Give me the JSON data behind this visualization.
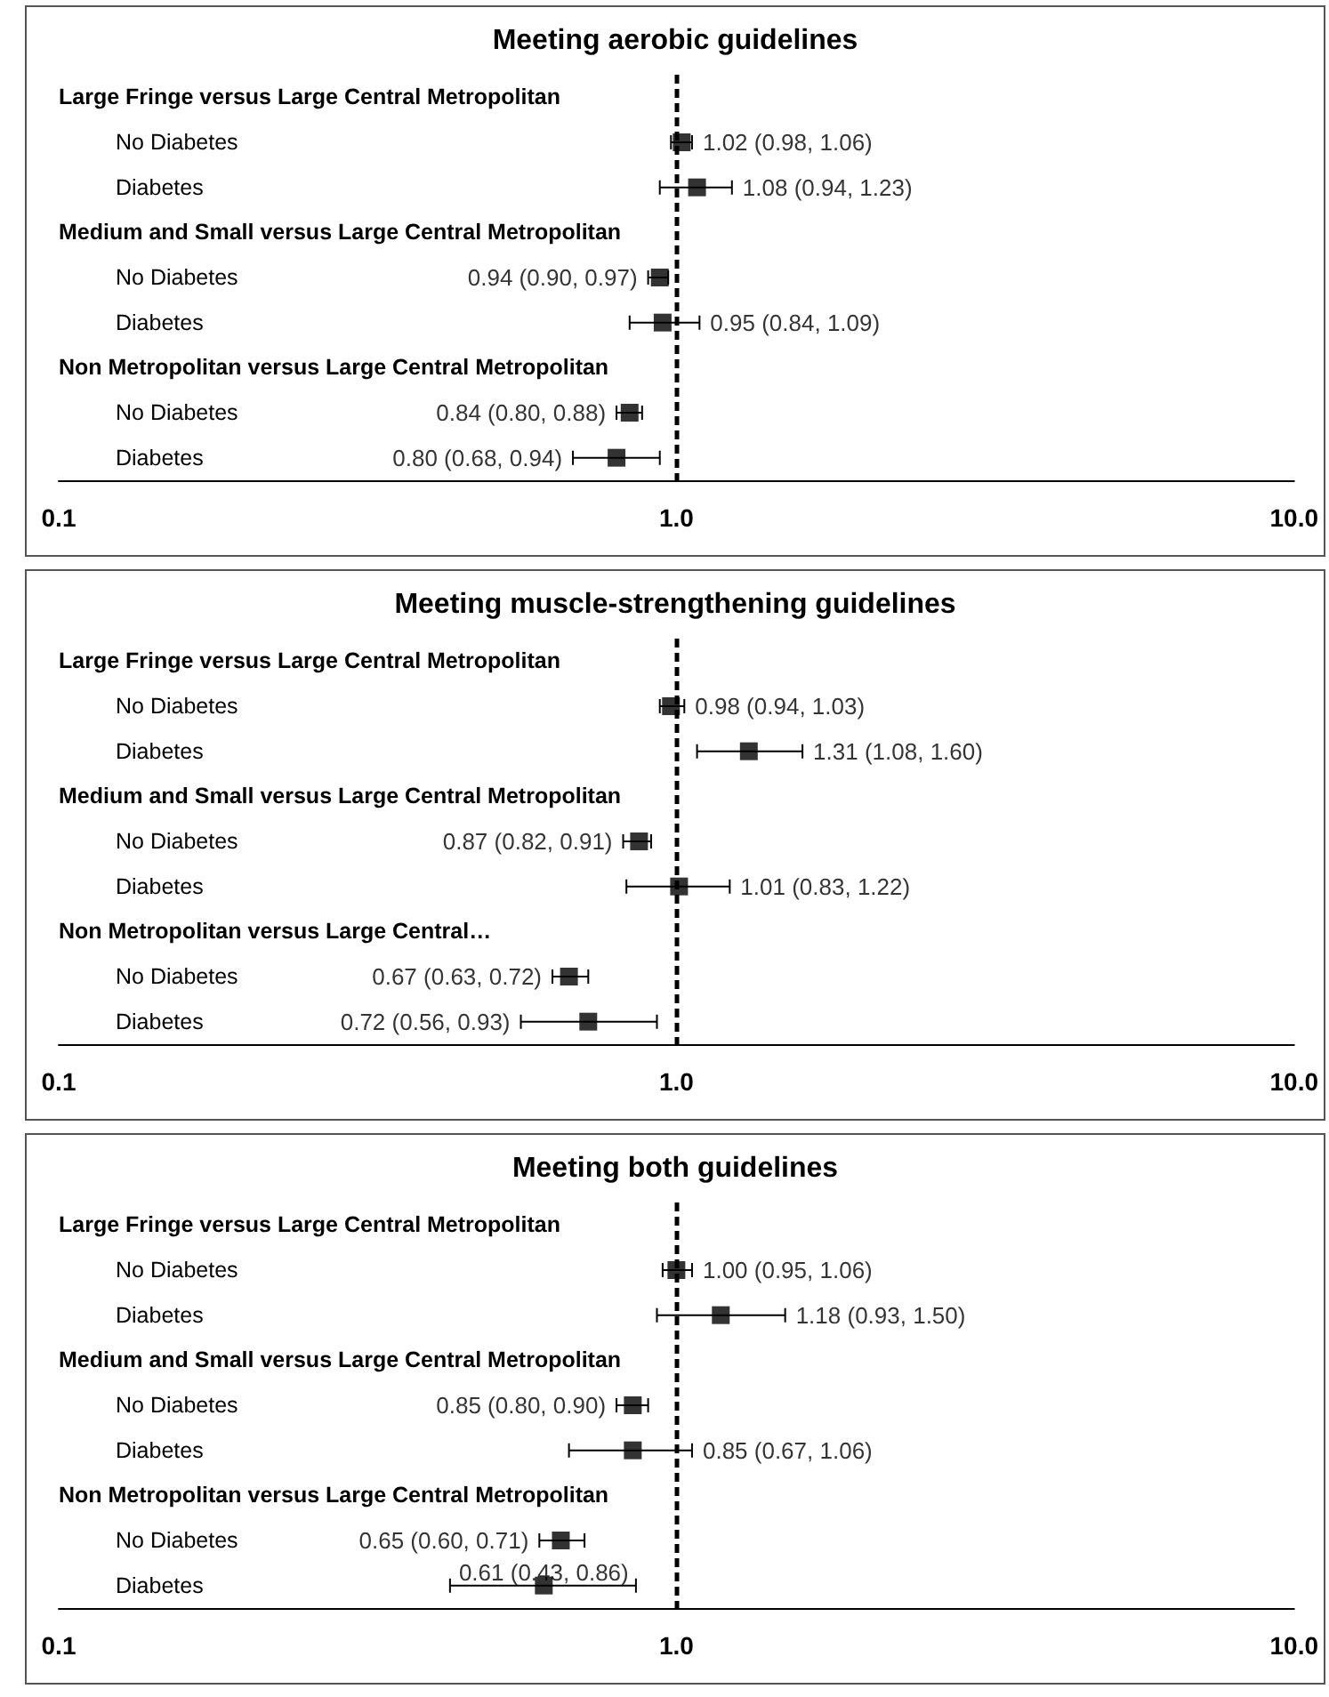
{
  "chart_data": [
    {
      "type": "scatter",
      "title": "Meeting aerobic guidelines",
      "orientation": "horizontal",
      "log": "x",
      "marker": "square",
      "color": "#000000",
      "categories": [
        "Large Fringe versus Large Central Metropolitan",
        "No Diabetes",
        "Diabetes",
        "Medium and Small versus Large Central Metropolitan",
        "No Diabetes",
        "Diabetes",
        "Non Metropolitan versus Large Central Metropolitan",
        "No Diabetes",
        "Diabetes"
      ],
      "values": [
        null,
        1.02,
        1.08,
        null,
        0.94,
        0.95,
        null,
        0.84,
        0.8
      ],
      "errors": [
        null,
        [
          0.98,
          1.06
        ],
        [
          0.94,
          1.23
        ],
        null,
        [
          0.9,
          0.97
        ],
        [
          0.84,
          1.09
        ],
        null,
        [
          0.8,
          0.88
        ],
        [
          0.68,
          0.94
        ]
      ],
      "value_labels": [
        null,
        "1.02 (0.98, 1.06)",
        "1.08 (0.94, 1.23)",
        null,
        "0.94 (0.90, 0.97)",
        "0.95 (0.84, 1.09)",
        null,
        "0.84 (0.80, 0.88)",
        "0.80 (0.68, 0.94)"
      ],
      "xlim": [
        0.1,
        10
      ],
      "xticks": [
        {
          "value": 0.1,
          "label": "0.1"
        },
        {
          "value": 1,
          "label": "1.0"
        },
        {
          "value": 10,
          "label": "10.0"
        }
      ],
      "ref_lines": [
        {
          "axis": "x",
          "value": 1,
          "color": "#000000",
          "line_style": "dashed"
        }
      ]
    },
    {
      "type": "scatter",
      "title": "Meeting muscle-strengthening guidelines",
      "orientation": "horizontal",
      "log": "x",
      "marker": "square",
      "color": "#000000",
      "categories": [
        "Large Fringe versus Large Central Metropolitan",
        "No Diabetes",
        "Diabetes",
        "Medium and Small versus Large Central Metropolitan",
        "No Diabetes",
        "Diabetes",
        "Non Metropolitan versus Large Central…",
        "No Diabetes",
        "Diabetes"
      ],
      "values": [
        null,
        0.98,
        1.31,
        null,
        0.87,
        1.01,
        null,
        0.67,
        0.72
      ],
      "errors": [
        null,
        [
          0.94,
          1.03
        ],
        [
          1.08,
          1.6
        ],
        null,
        [
          0.82,
          0.91
        ],
        [
          0.83,
          1.22
        ],
        null,
        [
          0.63,
          0.72
        ],
        [
          0.56,
          0.93
        ]
      ],
      "value_labels": [
        null,
        "0.98 (0.94, 1.03)",
        "1.31 (1.08, 1.60)",
        null,
        "0.87 (0.82, 0.91)",
        "1.01 (0.83, 1.22)",
        null,
        "0.67 (0.63, 0.72)",
        "0.72 (0.56, 0.93)"
      ],
      "xlim": [
        0.1,
        10
      ],
      "xticks": [
        {
          "value": 0.1,
          "label": "0.1"
        },
        {
          "value": 1,
          "label": "1.0"
        },
        {
          "value": 10,
          "label": "10.0"
        }
      ],
      "ref_lines": [
        {
          "axis": "x",
          "value": 1,
          "color": "#000000",
          "line_style": "dashed"
        }
      ]
    },
    {
      "type": "scatter",
      "title": "Meeting both guidelines",
      "orientation": "horizontal",
      "log": "x",
      "marker": "square",
      "color": "#000000",
      "categories": [
        "Large Fringe versus Large Central Metropolitan",
        "No Diabetes",
        "Diabetes",
        "Medium and Small versus Large Central Metropolitan",
        "No Diabetes",
        "Diabetes",
        "Non Metropolitan versus Large Central Metropolitan",
        "No Diabetes",
        "Diabetes"
      ],
      "values": [
        null,
        1.0,
        1.18,
        null,
        0.85,
        0.85,
        null,
        0.65,
        0.61
      ],
      "errors": [
        null,
        [
          0.95,
          1.06
        ],
        [
          0.93,
          1.5
        ],
        null,
        [
          0.8,
          0.9
        ],
        [
          0.67,
          1.06
        ],
        null,
        [
          0.6,
          0.71
        ],
        [
          0.43,
          0.86
        ]
      ],
      "value_labels": [
        null,
        "1.00 (0.95, 1.06)",
        "1.18 (0.93, 1.50)",
        null,
        "0.85 (0.80, 0.90)",
        "0.85 (0.67, 1.06)",
        null,
        "0.65 (0.60, 0.71)",
        "0.61 (0.43, 0.86)"
      ],
      "xlim": [
        0.1,
        10
      ],
      "xticks": [
        {
          "value": 0.1,
          "label": "0.1"
        },
        {
          "value": 1,
          "label": "1.0"
        },
        {
          "value": 10,
          "label": "10.0"
        }
      ],
      "ref_lines": [
        {
          "axis": "x",
          "value": 1,
          "color": "#000000",
          "line_style": "dashed"
        }
      ]
    }
  ]
}
